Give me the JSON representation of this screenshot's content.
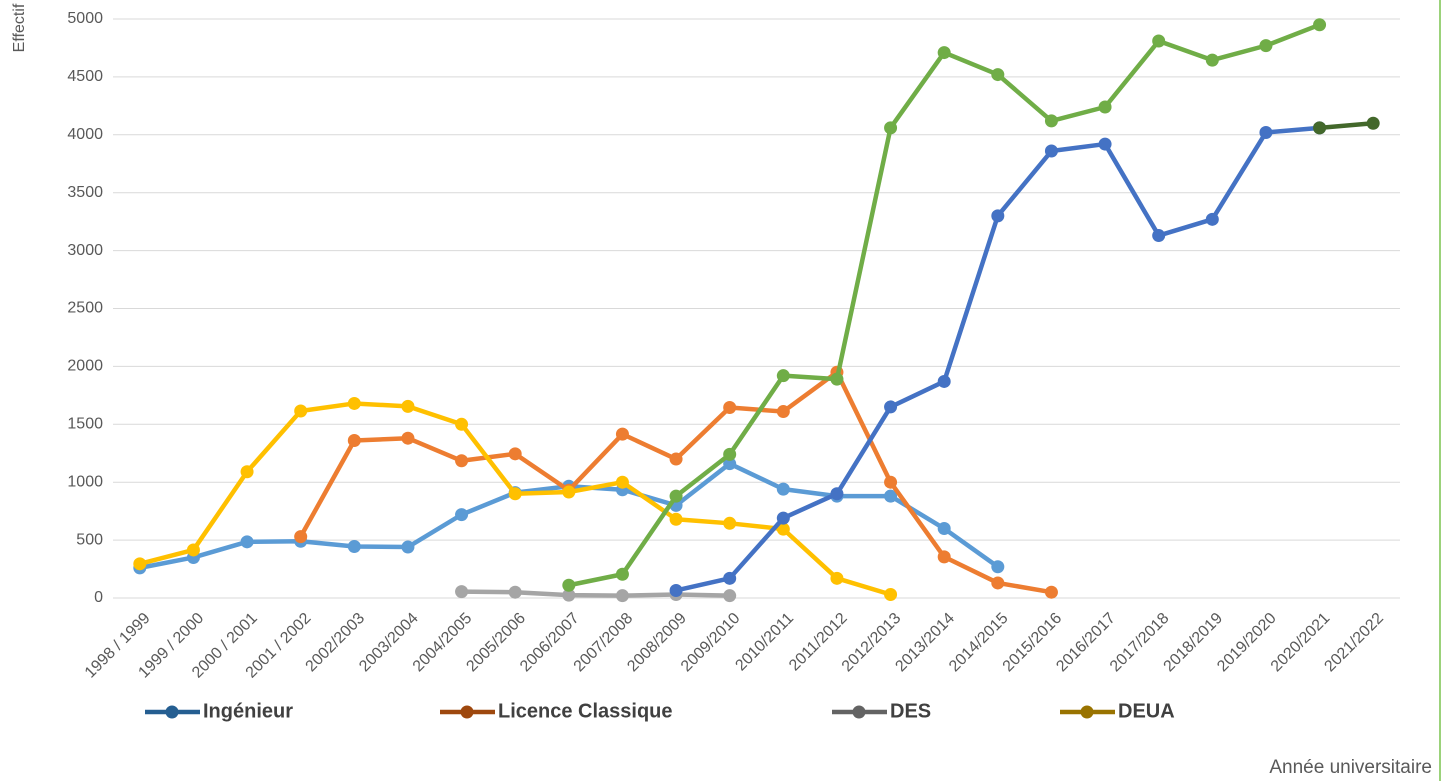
{
  "chart_data": {
    "type": "line",
    "y_label": "Effectif",
    "x_label": "Année universitaire",
    "categories": [
      "1998 / 1999",
      "1999 / 2000",
      "2000 / 2001",
      "2001 / 2002",
      "2002/2003",
      "2003/2004",
      "2004/2005",
      "2005/2006",
      "2006/2007",
      "2007/2008",
      "2008/2009",
      "2009/2010",
      "2010/2011",
      "2011/2012",
      "2012/2013",
      "2013/2014",
      "2014/2015",
      "2015/2016",
      "2016/2017",
      "2017/2018",
      "2018/2019",
      "2019/2020",
      "2020/2021",
      "2021/2022"
    ],
    "ylim": [
      0,
      5000
    ],
    "yticks": [
      0,
      500,
      1000,
      1500,
      2000,
      2500,
      3000,
      3500,
      4000,
      4500,
      5000
    ],
    "grid": true,
    "legend": "bottom",
    "series": [
      {
        "name": "Ingénieur",
        "color": "#5b9bd5",
        "legend_color": "#255e91",
        "values": [
          260,
          350,
          485,
          490,
          445,
          440,
          720,
          910,
          965,
          935,
          800,
          1160,
          940,
          880,
          880,
          600,
          270,
          null,
          null,
          null,
          null,
          null,
          null,
          null
        ]
      },
      {
        "name": "Licence Classique",
        "color": "#ed7d31",
        "legend_color": "#9e480e",
        "values": [
          null,
          null,
          null,
          530,
          1360,
          1380,
          1185,
          1245,
          930,
          1415,
          1200,
          1645,
          1610,
          1950,
          1000,
          355,
          130,
          50,
          null,
          null,
          null,
          null,
          null,
          null
        ]
      },
      {
        "name": "DES",
        "color": "#a5a5a5",
        "legend_color": "#636363",
        "values": [
          null,
          null,
          null,
          null,
          null,
          null,
          55,
          50,
          25,
          20,
          30,
          20,
          null,
          null,
          null,
          null,
          null,
          null,
          null,
          null,
          null,
          null,
          null,
          null
        ]
      },
      {
        "name": "DEUA",
        "color": "#ffc000",
        "legend_color": "#997300",
        "values": [
          295,
          415,
          1090,
          1615,
          1680,
          1655,
          1500,
          900,
          915,
          1000,
          680,
          645,
          595,
          170,
          30,
          null,
          null,
          null,
          null,
          null,
          null,
          null,
          null,
          null
        ]
      },
      {
        "color": "#70ad47",
        "values": [
          null,
          null,
          null,
          null,
          null,
          null,
          null,
          null,
          110,
          205,
          880,
          1240,
          1920,
          1890,
          4060,
          4710,
          4520,
          4120,
          4240,
          4810,
          4645,
          4770,
          4950,
          null
        ]
      },
      {
        "color": "#4472c4",
        "values": [
          null,
          null,
          null,
          null,
          null,
          null,
          null,
          null,
          null,
          null,
          65,
          170,
          690,
          900,
          1650,
          1870,
          3300,
          3860,
          3920,
          3130,
          3270,
          4020,
          4060,
          null
        ]
      },
      {
        "color": "#43682b",
        "values": [
          null,
          null,
          null,
          null,
          null,
          null,
          null,
          null,
          null,
          null,
          null,
          null,
          null,
          null,
          null,
          null,
          null,
          null,
          null,
          null,
          null,
          null,
          4060,
          4100
        ]
      }
    ]
  }
}
